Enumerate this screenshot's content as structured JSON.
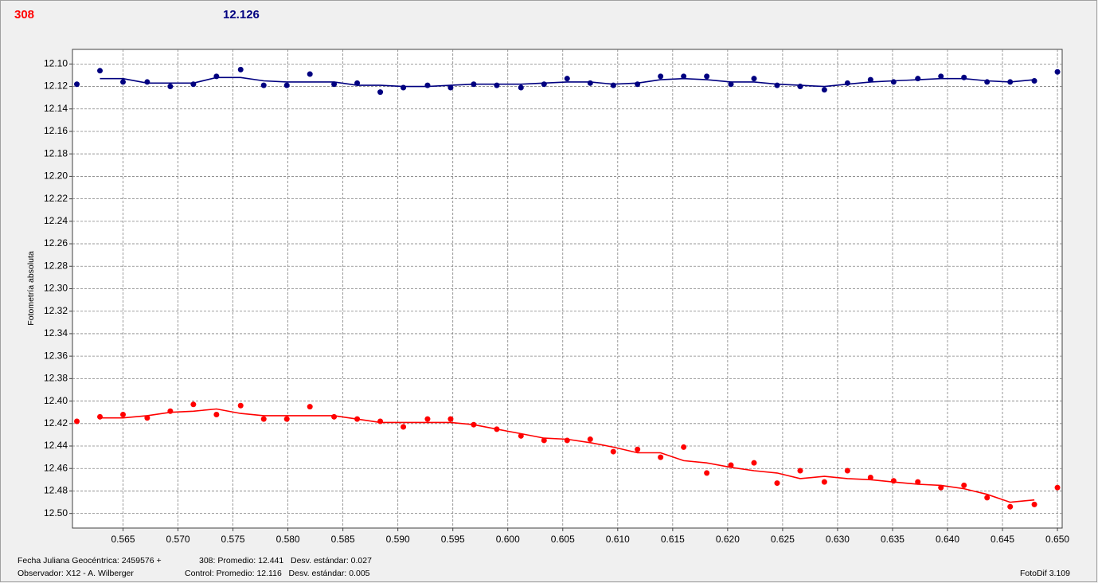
{
  "chart_data": {
    "type": "scatter",
    "title": "308",
    "subtitle": "12.126",
    "y_label": "Fotometría absoluta",
    "notes": [
      "Fecha Juliana Geocéntrica: 2459576 +",
      "Observador: X12 - A. Wilberger",
      "308: Promedio: 12.441   Desv. estándar: 0.027",
      "Control: Promedio: 12.116   Desv. estándar: 0.005",
      "FotoDif 3.109"
    ],
    "x": [
      0.5608,
      0.5629,
      0.565,
      0.5672,
      0.5693,
      0.5714,
      0.5735,
      0.5757,
      0.5778,
      0.5799,
      0.582,
      0.5842,
      0.5863,
      0.5884,
      0.5905,
      0.5927,
      0.5948,
      0.5969,
      0.599,
      0.6012,
      0.6033,
      0.6054,
      0.6075,
      0.6096,
      0.6118,
      0.6139,
      0.616,
      0.6181,
      0.6203,
      0.6224,
      0.6245,
      0.6266,
      0.6288,
      0.6309,
      0.633,
      0.6351,
      0.6373,
      0.6394,
      0.6415,
      0.6436,
      0.6457,
      0.6479,
      0.65
    ],
    "series": [
      {
        "color": "#000080",
        "values": [
          12.118,
          12.106,
          12.116,
          12.116,
          12.12,
          12.118,
          12.111,
          12.105,
          12.119,
          12.119,
          12.109,
          12.118,
          12.117,
          12.125,
          12.121,
          12.119,
          12.121,
          12.118,
          12.119,
          12.121,
          12.118,
          12.113,
          12.117,
          12.119,
          12.118,
          12.111,
          12.111,
          12.111,
          12.118,
          12.113,
          12.119,
          12.12,
          12.123,
          12.117,
          12.114,
          12.116,
          12.113,
          12.111,
          12.112,
          12.116,
          12.116,
          12.115,
          12.107
        ],
        "trend": [
          null,
          12.113,
          12.113,
          12.117,
          12.117,
          12.117,
          12.112,
          12.112,
          12.115,
          12.116,
          12.116,
          12.116,
          12.119,
          12.119,
          12.12,
          12.12,
          12.119,
          12.118,
          12.118,
          12.118,
          12.117,
          12.116,
          12.116,
          12.118,
          12.117,
          12.114,
          12.113,
          12.114,
          12.116,
          12.116,
          12.118,
          12.119,
          12.12,
          12.118,
          12.116,
          12.115,
          12.114,
          12.113,
          12.113,
          12.115,
          12.116,
          12.114,
          null
        ]
      },
      {
        "color": "#ff0000",
        "values": [
          12.418,
          12.414,
          12.412,
          12.415,
          12.409,
          12.403,
          12.412,
          12.404,
          12.416,
          12.416,
          12.405,
          12.414,
          12.416,
          12.418,
          12.423,
          12.416,
          12.416,
          12.421,
          12.425,
          12.431,
          12.435,
          12.435,
          12.434,
          12.445,
          12.443,
          12.45,
          12.441,
          12.464,
          12.457,
          12.455,
          12.473,
          12.462,
          12.472,
          12.462,
          12.468,
          12.471,
          12.472,
          12.477,
          12.475,
          12.486,
          12.494,
          12.492,
          12.477
        ],
        "trend": [
          null,
          12.415,
          12.415,
          12.413,
          12.41,
          12.409,
          12.407,
          12.411,
          12.413,
          12.413,
          12.413,
          12.413,
          12.416,
          12.419,
          12.419,
          12.419,
          12.419,
          12.421,
          12.425,
          12.429,
          12.433,
          12.434,
          12.437,
          12.441,
          12.446,
          12.446,
          12.453,
          12.455,
          12.459,
          12.462,
          12.464,
          12.469,
          12.467,
          12.469,
          12.47,
          12.472,
          12.474,
          12.475,
          12.478,
          12.483,
          12.49,
          12.488,
          null
        ]
      }
    ],
    "xlim": [
      0.5604,
      0.65043
    ],
    "ylim": [
      12.513,
      12.087
    ],
    "xticks": [
      0.565,
      {
        "value": 0.57,
        "label": "0.570"
      },
      0.575,
      {
        "value": 0.58,
        "label": "0.580"
      },
      0.585,
      {
        "value": 0.59,
        "label": "0.590"
      },
      0.595,
      {
        "value": 0.6,
        "label": "0.600"
      },
      0.605,
      {
        "value": 0.61,
        "label": "0.610"
      },
      0.615,
      {
        "value": 0.62,
        "label": "0.620"
      },
      0.625,
      {
        "value": 0.63,
        "label": "0.630"
      },
      0.635,
      {
        "value": 0.64,
        "label": "0.640"
      },
      0.645,
      {
        "value": 0.65,
        "label": "0.650"
      }
    ],
    "yticks": [
      {
        "value": 12.1,
        "label": "12.10"
      },
      12.12,
      12.14,
      12.16,
      12.18,
      {
        "value": 12.2,
        "label": "12.20"
      },
      12.22,
      12.24,
      12.26,
      12.28,
      {
        "value": 12.3,
        "label": "12.30"
      },
      12.32,
      12.34,
      12.36,
      12.38,
      {
        "value": 12.4,
        "label": "12.40"
      },
      12.42,
      12.44,
      12.46,
      12.48,
      {
        "value": 12.5,
        "label": "12.50"
      }
    ],
    "grid": true
  }
}
